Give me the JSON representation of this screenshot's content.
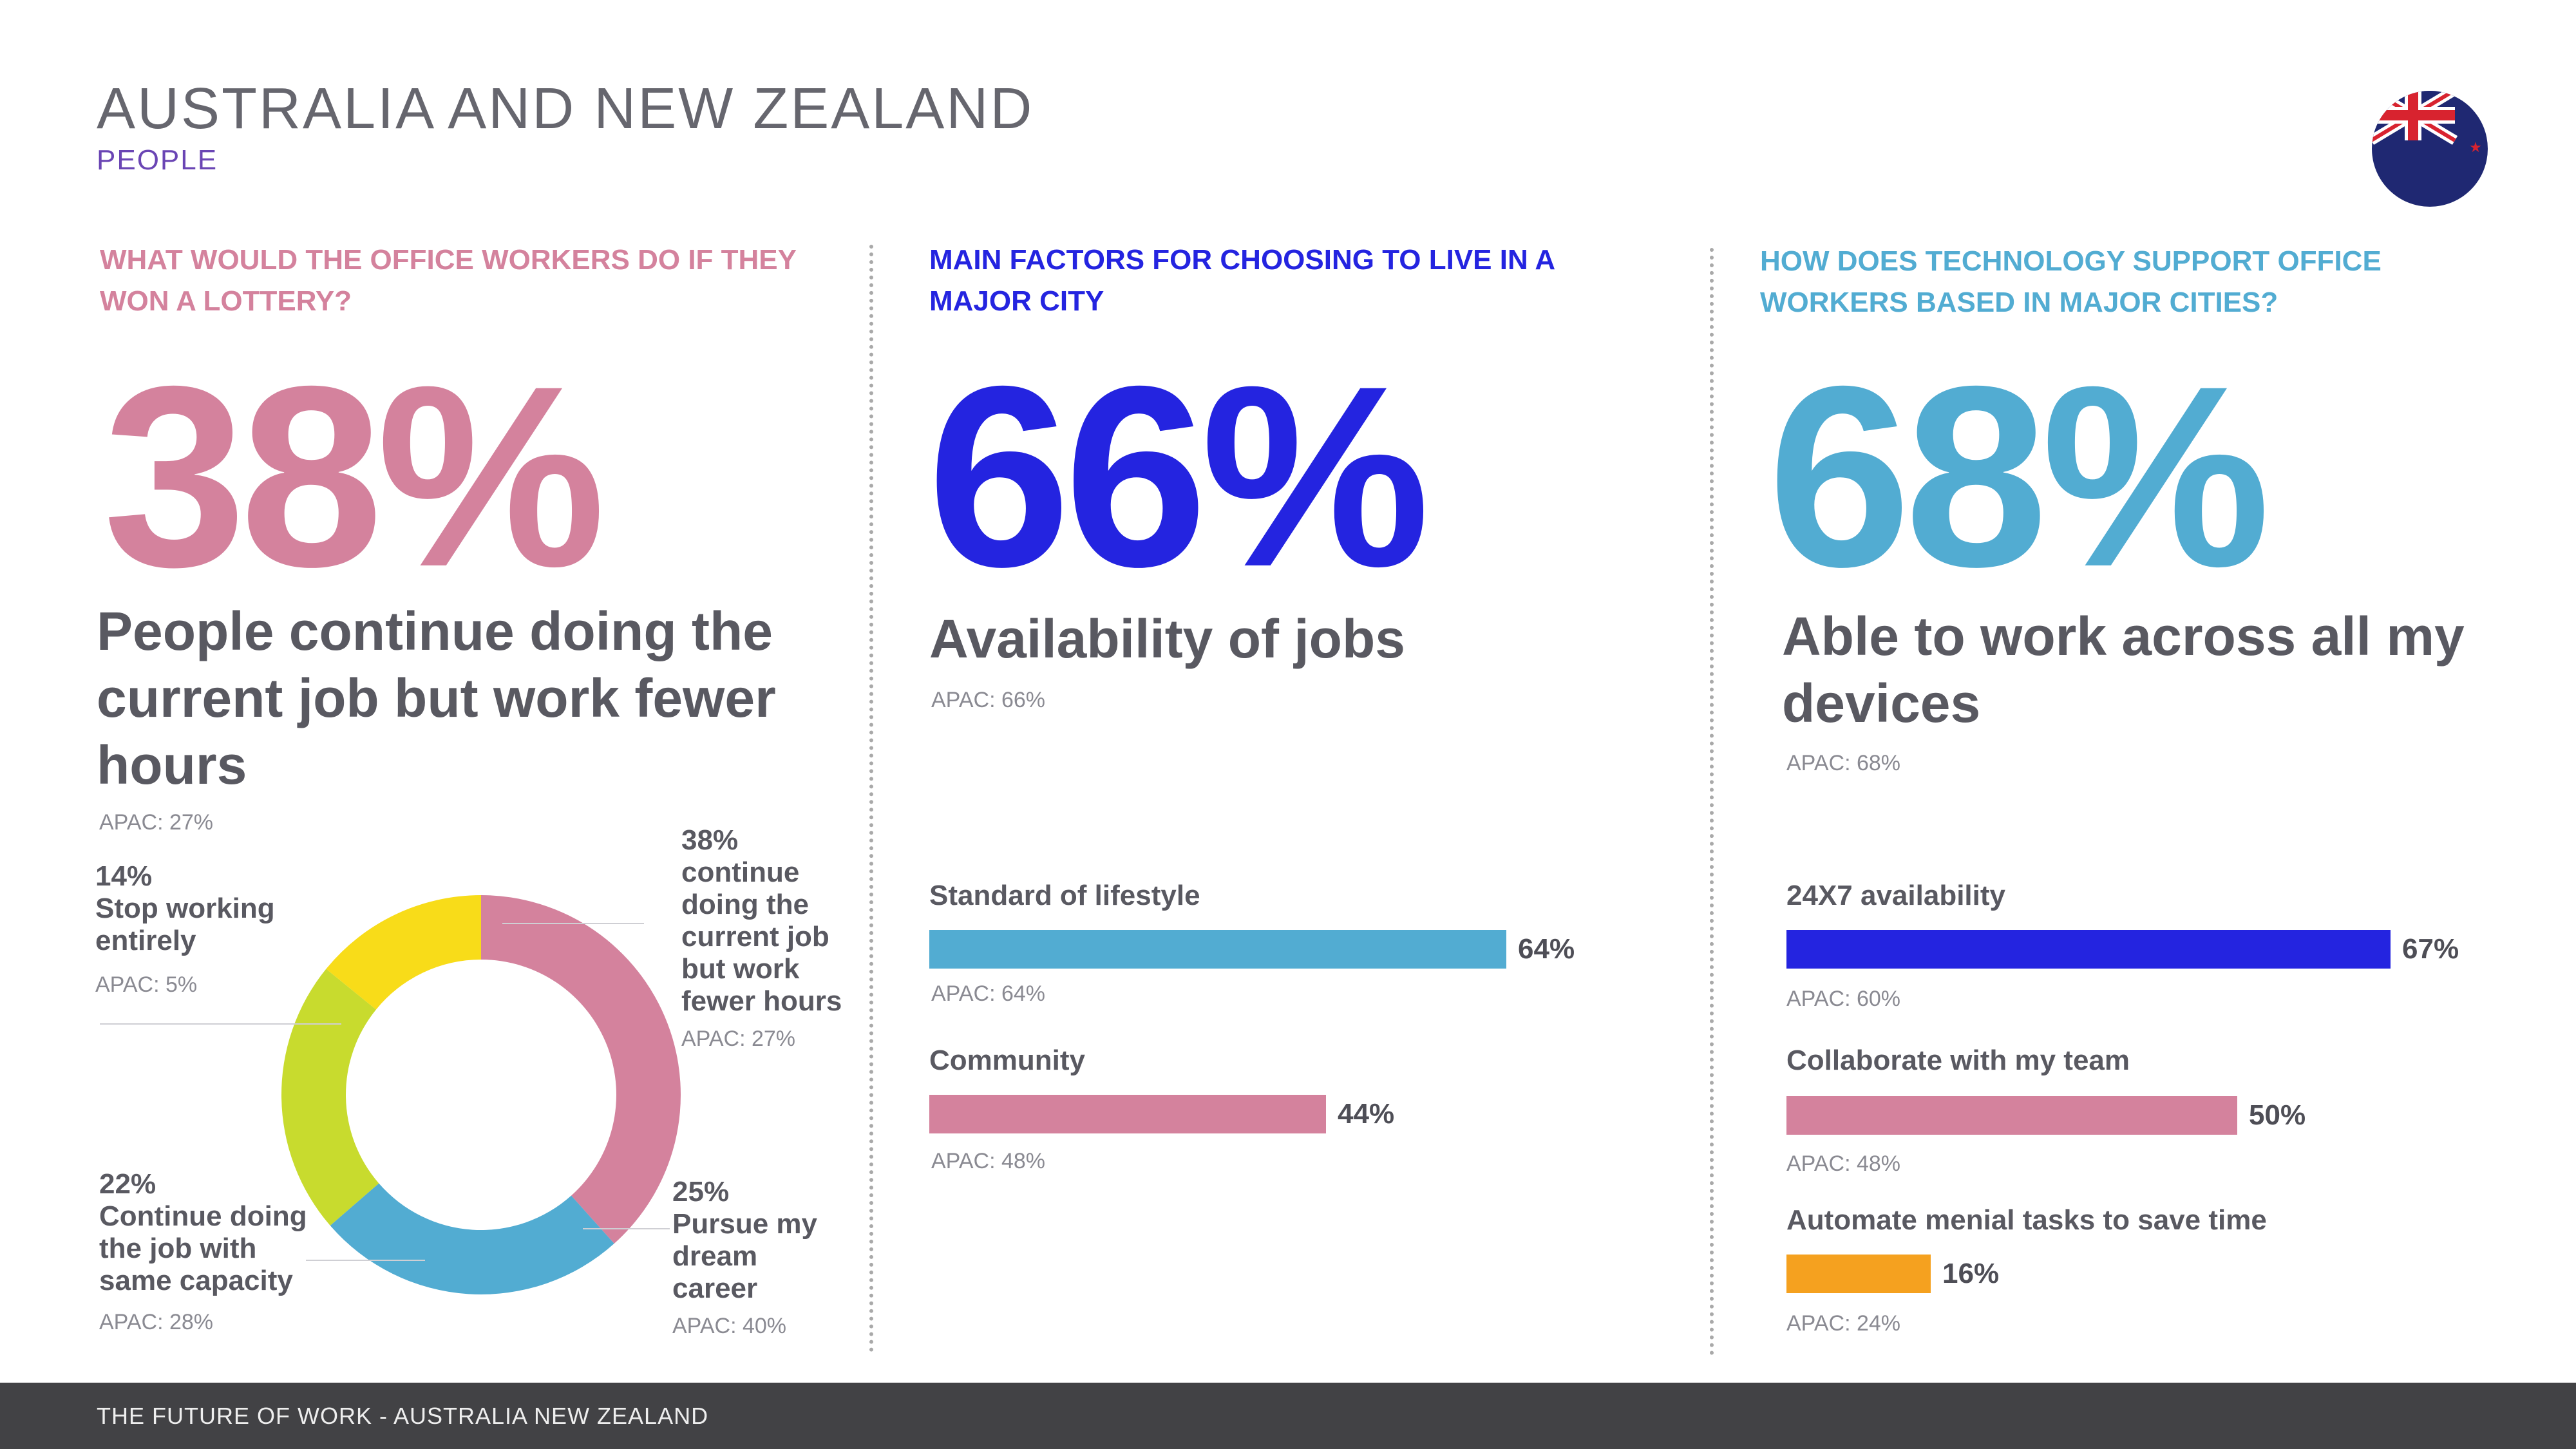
{
  "header": {
    "title": "AUSTRALIA AND NEW ZEALAND",
    "subtitle": "PEOPLE"
  },
  "colors": {
    "pink": "#d4829d",
    "blue": "#2424e0",
    "sky": "#52acd2",
    "yellow": "#f8dc19",
    "lime": "#c8db2e",
    "orange": "#f5a11f",
    "footer": "#424245"
  },
  "col1": {
    "question": "WHAT WOULD THE OFFICE WORKERS DO IF THEY WON A LOTTERY?",
    "big": "38%",
    "headline": "People continue doing the current job but work fewer hours",
    "apac": "APAC: 27%"
  },
  "col2": {
    "question": "MAIN FACTORS FOR CHOOSING TO LIVE IN A MAJOR CITY",
    "big": "66%",
    "headline": "Availability of jobs",
    "apac": "APAC: 66%"
  },
  "col3": {
    "question": "HOW DOES TECHNOLOGY SUPPORT OFFICE WORKERS BASED IN MAJOR CITIES?",
    "big": "68%",
    "headline": "Able to work across all my devices",
    "apac": "APAC: 68%"
  },
  "chart_data": [
    {
      "type": "pie",
      "variant": "donut",
      "slices": [
        {
          "label": "continue doing the current job but work fewer hours",
          "value": 38,
          "pct_label": "38%",
          "apac": "APAC: 27%",
          "color": "#d4829d"
        },
        {
          "label": "Pursue my dream career",
          "value": 25,
          "pct_label": "25%",
          "apac": "APAC: 40%",
          "color": "#52acd2"
        },
        {
          "label": "Continue doing the job with same capacity",
          "value": 22,
          "pct_label": "22%",
          "apac": "APAC: 28%",
          "color": "#c8db2e"
        },
        {
          "label": "Stop working entirely",
          "value": 14,
          "pct_label": "14%",
          "apac": "APAC: 5%",
          "color": "#f8dc19"
        }
      ]
    },
    {
      "type": "bar",
      "orientation": "horizontal",
      "xlim": [
        0,
        100
      ],
      "series": [
        {
          "label": "Standard of lifestyle",
          "value": 64,
          "pct_label": "64%",
          "apac": "APAC: 64%",
          "color": "#52acd2"
        },
        {
          "label": "Community",
          "value": 44,
          "pct_label": "44%",
          "apac": "APAC: 48%",
          "color": "#d4829d"
        }
      ]
    },
    {
      "type": "bar",
      "orientation": "horizontal",
      "xlim": [
        0,
        100
      ],
      "series": [
        {
          "label": "24X7 availability",
          "value": 67,
          "pct_label": "67%",
          "apac": "APAC: 60%",
          "color": "#2424e0"
        },
        {
          "label": "Collaborate with my team",
          "value": 50,
          "pct_label": "50%",
          "apac": "APAC: 48%",
          "color": "#d4829d"
        },
        {
          "label": "Automate menial tasks to save time",
          "value": 16,
          "pct_label": "16%",
          "apac": "APAC: 24%",
          "color": "#f5a11f"
        }
      ]
    }
  ],
  "footer": {
    "text": "THE FUTURE OF WORK - AUSTRALIA NEW ZEALAND"
  }
}
